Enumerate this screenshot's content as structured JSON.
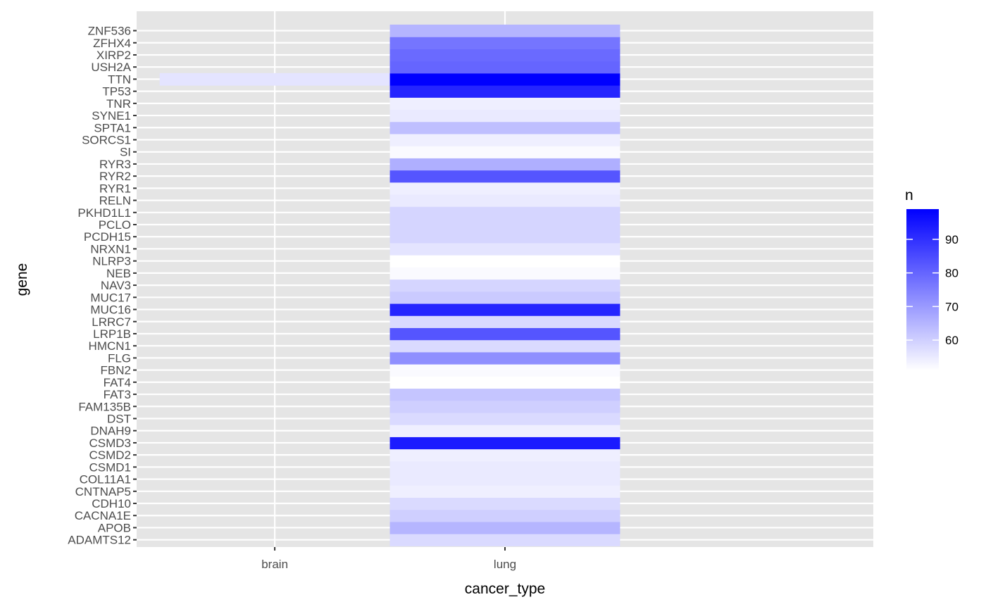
{
  "chart_data": {
    "type": "heatmap",
    "xlabel": "cancer_type",
    "ylabel": "gene",
    "x_categories": [
      "brain",
      "lung"
    ],
    "y_categories": [
      "ADAMTS12",
      "APOB",
      "CACNA1E",
      "CDH10",
      "CNTNAP5",
      "COL11A1",
      "CSMD1",
      "CSMD2",
      "CSMD3",
      "DNAH9",
      "DST",
      "FAM135B",
      "FAT3",
      "FAT4",
      "FBN2",
      "FLG",
      "HMCN1",
      "LRP1B",
      "LRRC7",
      "MUC16",
      "MUC17",
      "NAV3",
      "NEB",
      "NLRP3",
      "NRXN1",
      "PCDH15",
      "PCLO",
      "PKHD1L1",
      "RELN",
      "RYR1",
      "RYR2",
      "RYR3",
      "SI",
      "SORCS1",
      "SPTA1",
      "SYNE1",
      "TNR",
      "TP53",
      "TTN",
      "USH2A",
      "XIRP2",
      "ZFHX4",
      "ZNF536"
    ],
    "cells": [
      {
        "x": "brain",
        "y": "TTN",
        "value": 56
      },
      {
        "x": "lung",
        "y": "ADAMTS12",
        "value": 58
      },
      {
        "x": "lung",
        "y": "APOB",
        "value": 65
      },
      {
        "x": "lung",
        "y": "CACNA1E",
        "value": 60
      },
      {
        "x": "lung",
        "y": "CDH10",
        "value": 58
      },
      {
        "x": "lung",
        "y": "CNTNAP5",
        "value": 54
      },
      {
        "x": "lung",
        "y": "COL11A1",
        "value": 55
      },
      {
        "x": "lung",
        "y": "CSMD1",
        "value": 55
      },
      {
        "x": "lung",
        "y": "CSMD2",
        "value": 54
      },
      {
        "x": "lung",
        "y": "CSMD3",
        "value": 94
      },
      {
        "x": "lung",
        "y": "DNAH9",
        "value": 54
      },
      {
        "x": "lung",
        "y": "DST",
        "value": 58
      },
      {
        "x": "lung",
        "y": "FAM135B",
        "value": 60
      },
      {
        "x": "lung",
        "y": "FAT3",
        "value": 62
      },
      {
        "x": "lung",
        "y": "FAT4",
        "value": 51
      },
      {
        "x": "lung",
        "y": "FBN2",
        "value": 52
      },
      {
        "x": "lung",
        "y": "FLG",
        "value": 72
      },
      {
        "x": "lung",
        "y": "HMCN1",
        "value": 58
      },
      {
        "x": "lung",
        "y": "LRP1B",
        "value": 83
      },
      {
        "x": "lung",
        "y": "LRRC7",
        "value": 58
      },
      {
        "x": "lung",
        "y": "MUC16",
        "value": 92
      },
      {
        "x": "lung",
        "y": "MUC17",
        "value": 61
      },
      {
        "x": "lung",
        "y": "NAV3",
        "value": 59
      },
      {
        "x": "lung",
        "y": "NEB",
        "value": 52
      },
      {
        "x": "lung",
        "y": "NLRP3",
        "value": 51
      },
      {
        "x": "lung",
        "y": "NRXN1",
        "value": 56
      },
      {
        "x": "lung",
        "y": "PCDH15",
        "value": 59
      },
      {
        "x": "lung",
        "y": "PCLO",
        "value": 59
      },
      {
        "x": "lung",
        "y": "PKHD1L1",
        "value": 59
      },
      {
        "x": "lung",
        "y": "RELN",
        "value": 55
      },
      {
        "x": "lung",
        "y": "RYR1",
        "value": 54
      },
      {
        "x": "lung",
        "y": "RYR2",
        "value": 83
      },
      {
        "x": "lung",
        "y": "RYR3",
        "value": 66
      },
      {
        "x": "lung",
        "y": "SI",
        "value": 52
      },
      {
        "x": "lung",
        "y": "SORCS1",
        "value": 54
      },
      {
        "x": "lung",
        "y": "SPTA1",
        "value": 63
      },
      {
        "x": "lung",
        "y": "SYNE1",
        "value": 55
      },
      {
        "x": "lung",
        "y": "TNR",
        "value": 54
      },
      {
        "x": "lung",
        "y": "TP53",
        "value": 92
      },
      {
        "x": "lung",
        "y": "TTN",
        "value": 99
      },
      {
        "x": "lung",
        "y": "USH2A",
        "value": 80
      },
      {
        "x": "lung",
        "y": "XIRP2",
        "value": 79
      },
      {
        "x": "lung",
        "y": "ZFHX4",
        "value": 77
      },
      {
        "x": "lung",
        "y": "ZNF536",
        "value": 65
      }
    ],
    "legend": {
      "title": "n",
      "position": "right",
      "min": 51,
      "max": 99,
      "breaks": [
        60,
        70,
        80,
        90
      ],
      "low_color": "#ffffff",
      "high_color": "#0000ff"
    },
    "panel_background": "#e5e5e5",
    "grid": true
  }
}
